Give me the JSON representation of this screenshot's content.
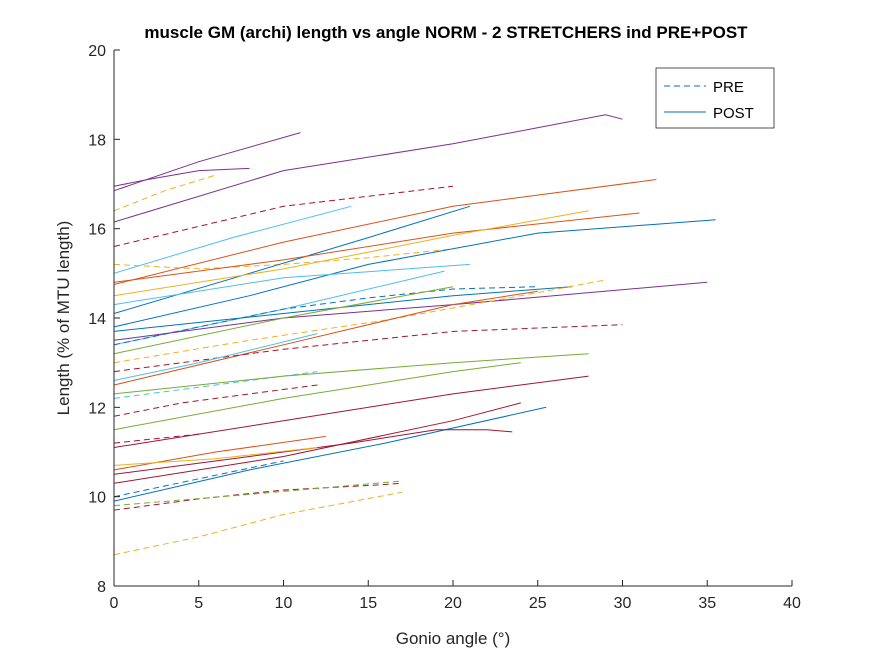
{
  "chart_data": {
    "type": "line",
    "title": "muscle GM (archi) length vs angle NORM - 2 STRETCHERS ind PRE+POST",
    "xlabel": "Gonio angle (°)",
    "ylabel": "Length (% of MTU length)",
    "xlim": [
      0,
      40
    ],
    "ylim": [
      8,
      20
    ],
    "xticks": [
      "0",
      "5",
      "10",
      "15",
      "20",
      "25",
      "30",
      "35",
      "40"
    ],
    "yticks": [
      "8",
      "10",
      "12",
      "14",
      "16",
      "18",
      "20"
    ],
    "grid": false,
    "legend": {
      "placement": "top-right",
      "entries": [
        {
          "label": "PRE",
          "style": "dashed",
          "color": "#0072BD"
        },
        {
          "label": "POST",
          "style": "solid",
          "color": "#0072BD"
        }
      ]
    },
    "series": [
      {
        "style": "solid",
        "color": "#7E2F8E",
        "x": [
          0,
          5,
          11
        ],
        "y": [
          16.85,
          17.5,
          18.15
        ]
      },
      {
        "style": "solid",
        "color": "#7E2F8E",
        "x": [
          0,
          2,
          5,
          8
        ],
        "y": [
          16.95,
          17.1,
          17.3,
          17.35
        ]
      },
      {
        "style": "dashed",
        "color": "#EDB120",
        "x": [
          0,
          3,
          6
        ],
        "y": [
          16.4,
          16.85,
          17.2
        ]
      },
      {
        "style": "solid",
        "color": "#7E2F8E",
        "x": [
          0,
          10,
          20,
          29,
          30
        ],
        "y": [
          16.15,
          17.3,
          17.9,
          18.55,
          18.45
        ]
      },
      {
        "style": "dashed",
        "color": "#A2142F",
        "x": [
          0,
          10,
          20
        ],
        "y": [
          15.6,
          16.5,
          16.95
        ]
      },
      {
        "style": "solid",
        "color": "#4DBEEE",
        "x": [
          0,
          7,
          14
        ],
        "y": [
          15.0,
          15.8,
          16.5
        ]
      },
      {
        "style": "solid",
        "color": "#D95319",
        "x": [
          0,
          10,
          20,
          32
        ],
        "y": [
          14.75,
          15.7,
          16.5,
          17.1
        ]
      },
      {
        "style": "dashed",
        "color": "#EDB120",
        "x": [
          0,
          5,
          10,
          15,
          20
        ],
        "y": [
          15.2,
          15.1,
          15.2,
          15.35,
          15.55
        ]
      },
      {
        "style": "solid",
        "color": "#0072BD",
        "x": [
          0,
          8,
          15,
          21
        ],
        "y": [
          14.1,
          15.0,
          15.8,
          16.5
        ]
      },
      {
        "style": "solid",
        "color": "#D95319",
        "x": [
          0,
          10,
          20,
          31
        ],
        "y": [
          14.8,
          15.3,
          15.9,
          16.35
        ]
      },
      {
        "style": "solid",
        "color": "#EDB120",
        "x": [
          0,
          10,
          20,
          28
        ],
        "y": [
          14.5,
          15.1,
          15.85,
          16.4
        ]
      },
      {
        "style": "solid",
        "color": "#0072BD",
        "x": [
          0,
          8,
          15,
          25,
          32,
          35.5
        ],
        "y": [
          13.8,
          14.5,
          15.2,
          15.9,
          16.1,
          16.2
        ]
      },
      {
        "style": "solid",
        "color": "#4DBEEE",
        "x": [
          0,
          10,
          21
        ],
        "y": [
          14.3,
          14.9,
          15.2
        ]
      },
      {
        "style": "solid",
        "color": "#4DBEEE",
        "x": [
          0,
          10,
          19.5
        ],
        "y": [
          13.4,
          14.2,
          15.05
        ]
      },
      {
        "style": "dashed",
        "color": "#0072BD",
        "x": [
          0,
          5,
          10,
          15,
          20,
          25
        ],
        "y": [
          13.4,
          13.8,
          14.2,
          14.45,
          14.65,
          14.7
        ]
      },
      {
        "style": "solid",
        "color": "#0072BD",
        "x": [
          0,
          10,
          20,
          27
        ],
        "y": [
          13.7,
          14.1,
          14.5,
          14.7
        ]
      },
      {
        "style": "solid",
        "color": "#7E2F8E",
        "x": [
          0,
          10,
          20,
          35
        ],
        "y": [
          13.5,
          14.0,
          14.3,
          14.8
        ]
      },
      {
        "style": "dashed",
        "color": "#EDB120",
        "x": [
          0,
          8,
          16,
          24,
          29
        ],
        "y": [
          13.0,
          13.5,
          13.95,
          14.5,
          14.85
        ]
      },
      {
        "style": "solid",
        "color": "#77AC30",
        "x": [
          0,
          10,
          20
        ],
        "y": [
          13.2,
          14.0,
          14.7
        ]
      },
      {
        "style": "solid",
        "color": "#D95319",
        "x": [
          0,
          10,
          20,
          25
        ],
        "y": [
          12.5,
          13.4,
          14.3,
          14.6
        ]
      },
      {
        "style": "dashed",
        "color": "#A2142F",
        "x": [
          0,
          10,
          20,
          30
        ],
        "y": [
          12.8,
          13.3,
          13.7,
          13.85
        ]
      },
      {
        "style": "solid",
        "color": "#4DBEEE",
        "x": [
          0,
          5,
          12
        ],
        "y": [
          12.6,
          13.0,
          13.65
        ]
      },
      {
        "style": "dashed",
        "color": "#4DBEEE",
        "x": [
          0,
          6,
          12
        ],
        "y": [
          12.2,
          12.5,
          12.8
        ]
      },
      {
        "style": "solid",
        "color": "#77AC30",
        "x": [
          0,
          10,
          20,
          28
        ],
        "y": [
          12.3,
          12.7,
          13.0,
          13.2
        ]
      },
      {
        "style": "solid",
        "color": "#77AC30",
        "x": [
          0,
          10,
          20,
          24
        ],
        "y": [
          11.5,
          12.2,
          12.8,
          13.0
        ]
      },
      {
        "style": "dashed",
        "color": "#A2142F",
        "x": [
          0,
          4,
          8,
          12
        ],
        "y": [
          11.8,
          12.1,
          12.3,
          12.5
        ]
      },
      {
        "style": "solid",
        "color": "#A2142F",
        "x": [
          0,
          10,
          20,
          28
        ],
        "y": [
          11.1,
          11.7,
          12.3,
          12.7
        ]
      },
      {
        "style": "dashed",
        "color": "#A2142F",
        "x": [
          0,
          2.5,
          5
        ],
        "y": [
          11.2,
          11.3,
          11.4
        ]
      },
      {
        "style": "solid",
        "color": "#0072BD",
        "x": [
          0,
          8,
          16,
          25.5
        ],
        "y": [
          9.9,
          10.6,
          11.2,
          12.0
        ]
      },
      {
        "style": "solid",
        "color": "#A2142F",
        "x": [
          0,
          10,
          20,
          24
        ],
        "y": [
          10.3,
          10.9,
          11.7,
          12.1
        ]
      },
      {
        "style": "solid",
        "color": "#D95319",
        "x": [
          0,
          6,
          12.5
        ],
        "y": [
          10.6,
          11.0,
          11.35
        ]
      },
      {
        "style": "solid",
        "color": "#A2142F",
        "x": [
          0,
          8,
          14,
          19,
          22,
          23.5
        ],
        "y": [
          10.5,
          10.9,
          11.2,
          11.5,
          11.5,
          11.45
        ]
      },
      {
        "style": "dashed",
        "color": "#0072BD",
        "x": [
          0,
          5,
          10
        ],
        "y": [
          10.0,
          10.4,
          10.8
        ]
      },
      {
        "style": "solid",
        "color": "#EDB120",
        "x": [
          0,
          6,
          12
        ],
        "y": [
          10.7,
          10.85,
          11.1
        ]
      },
      {
        "style": "dashed",
        "color": "#A2142F",
        "x": [
          0,
          5,
          10,
          15,
          17
        ],
        "y": [
          9.7,
          9.95,
          10.15,
          10.25,
          10.3
        ]
      },
      {
        "style": "dashed",
        "color": "#77AC30",
        "x": [
          0,
          8,
          17
        ],
        "y": [
          9.8,
          10.05,
          10.35
        ]
      },
      {
        "style": "dashed",
        "color": "#EDB120",
        "x": [
          0,
          5,
          10,
          17
        ],
        "y": [
          8.7,
          9.1,
          9.6,
          10.1
        ]
      }
    ]
  }
}
